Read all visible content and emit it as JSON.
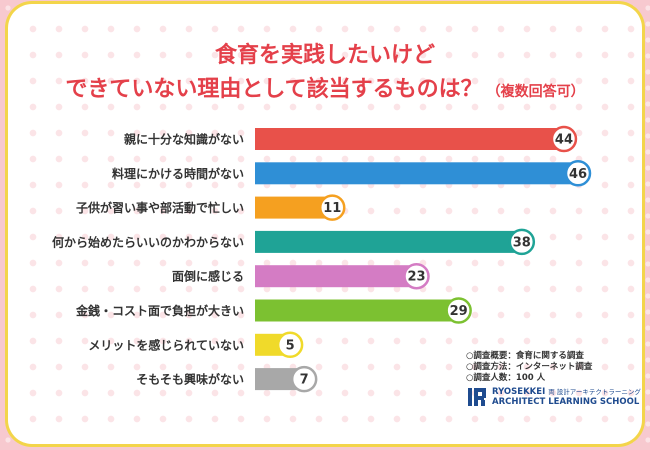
{
  "header": {
    "title_line1": "食育を実践したいけど",
    "title_line2": "できていない理由として該当するものは？",
    "title_note": "（複数回答可）"
  },
  "chart_data": {
    "type": "bar",
    "orientation": "horizontal",
    "title": "食育を実践したいけどできていない理由として該当するものは？（複数回答可）",
    "categories": [
      "親に十分な知識がない",
      "料理にかける時間がない",
      "子供が習い事や部活動で忙しい",
      "何から始めたらいいのかわからない",
      "面倒に感じる",
      "金銭・コスト面で負担が大きい",
      "メリットを感じられていない",
      "そもそも興味がない"
    ],
    "values": [
      44,
      46,
      11,
      38,
      23,
      29,
      5,
      7
    ],
    "colors": [
      "#e8514a",
      "#2f8fd6",
      "#f5a020",
      "#1fa396",
      "#d47cc4",
      "#7cc131",
      "#f0da2a",
      "#a8a8a8"
    ],
    "xlim": [
      0,
      46
    ],
    "grid": false,
    "legend": "none"
  },
  "survey": {
    "line1": "○調査概要：食育に関する調査",
    "line2": "○調査方法：インターネット調査",
    "line3": "○調査人数：100 人"
  },
  "logo": {
    "name": "RYOSEKKEI",
    "name_jp": "両 設計アーキテクトラーニング",
    "school": "ARCHITECT LEARNING SCHOOL",
    "color": "#1f4b8f"
  }
}
